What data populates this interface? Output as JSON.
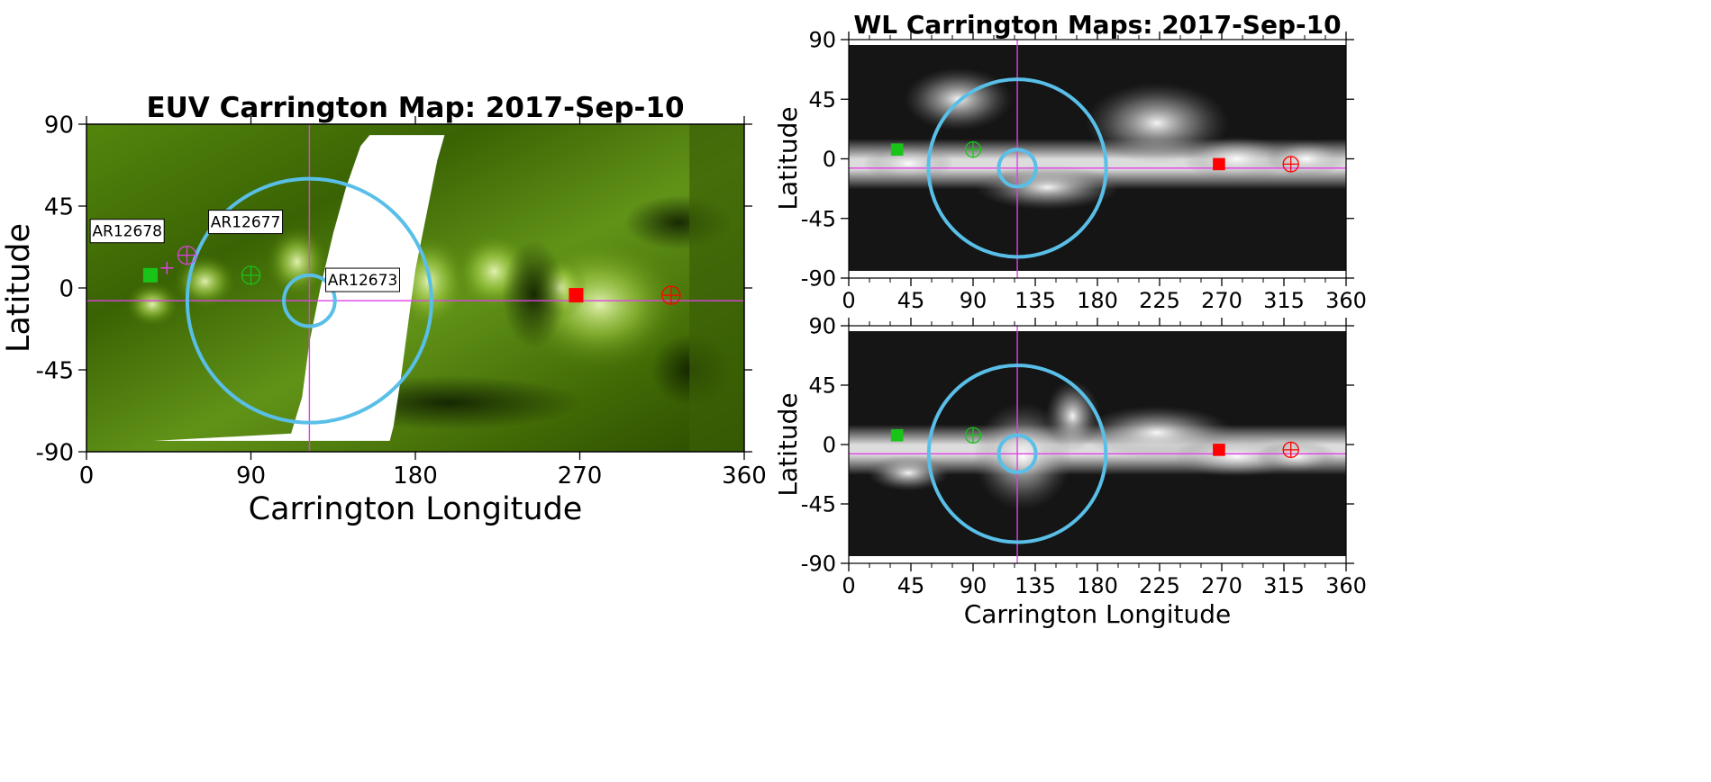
{
  "colors": {
    "circle": "#59bfe8",
    "crosshair": "#e040e6",
    "source_marker": "#19c419",
    "anti_marker": "#ff0000",
    "euv_base": "#2e5200",
    "euv_bright": "#d9f0a0",
    "wl_base": "#151515"
  },
  "chart_data": [
    {
      "id": "euv",
      "type": "heatmap",
      "title": "EUV Carrington Map: 2017-Sep-10",
      "xlabel": "Carrington Longitude",
      "ylabel": "Latitude",
      "xlim": [
        0,
        360
      ],
      "ylim": [
        -90,
        90
      ],
      "xticks": [
        "0",
        "90",
        "180",
        "270",
        "360"
      ],
      "yticks": [
        "90",
        "45",
        "0",
        "-45",
        "-90"
      ],
      "crosshair": {
        "lon": 122,
        "lat": -7
      },
      "circles": [
        {
          "lon": 122,
          "lat": -7,
          "radius_deg": 67
        },
        {
          "lon": 122,
          "lat": -7,
          "radius_deg": 14
        }
      ],
      "markers": [
        {
          "kind": "square",
          "lon": 35,
          "lat": 7,
          "color": "green"
        },
        {
          "kind": "circle-cross",
          "lon": 90,
          "lat": 7,
          "color": "green"
        },
        {
          "kind": "square",
          "lon": 268,
          "lat": -4,
          "color": "red"
        },
        {
          "kind": "circle-cross",
          "lon": 320,
          "lat": -4,
          "color": "red"
        },
        {
          "kind": "plus",
          "lon": 44,
          "lat": 11,
          "color": "magenta"
        },
        {
          "kind": "circle-cross",
          "lon": 55,
          "lat": 18,
          "color": "magenta"
        }
      ],
      "annotations": [
        {
          "text": "AR12678",
          "lon": 43,
          "lat": 13
        },
        {
          "text": "AR12677",
          "lon": 56,
          "lat": 18
        },
        {
          "text": "AR12673",
          "lon": 126,
          "lat": -2
        }
      ]
    },
    {
      "id": "wl-top",
      "type": "heatmap",
      "title": "WL Carrington Maps: 2017-Sep-10",
      "xlabel": "",
      "ylabel": "Latitude",
      "xlim": [
        0,
        360
      ],
      "ylim": [
        -90,
        90
      ],
      "xticks": [
        "0",
        "45",
        "90",
        "135",
        "180",
        "225",
        "270",
        "315",
        "360"
      ],
      "yticks": [
        "90",
        "45",
        "0",
        "-45",
        "-90"
      ],
      "crosshair": {
        "lon": 122,
        "lat": -7
      },
      "circles": [
        {
          "lon": 122,
          "lat": -7,
          "radius_deg": 67
        },
        {
          "lon": 122,
          "lat": -7,
          "radius_deg": 14
        }
      ],
      "markers": [
        {
          "kind": "square",
          "lon": 35,
          "lat": 7,
          "color": "green"
        },
        {
          "kind": "circle-cross",
          "lon": 90,
          "lat": 7,
          "color": "green"
        },
        {
          "kind": "square",
          "lon": 268,
          "lat": -4,
          "color": "red"
        },
        {
          "kind": "circle-cross",
          "lon": 320,
          "lat": -4,
          "color": "red"
        }
      ]
    },
    {
      "id": "wl-bottom",
      "type": "heatmap",
      "title": "",
      "xlabel": "Carrington Longitude",
      "ylabel": "Latitude",
      "xlim": [
        0,
        360
      ],
      "ylim": [
        -90,
        90
      ],
      "xticks": [
        "0",
        "45",
        "90",
        "135",
        "180",
        "225",
        "270",
        "315",
        "360"
      ],
      "yticks": [
        "90",
        "45",
        "0",
        "-45",
        "-90"
      ],
      "crosshair": {
        "lon": 122,
        "lat": -7
      },
      "circles": [
        {
          "lon": 122,
          "lat": -7,
          "radius_deg": 67
        },
        {
          "lon": 122,
          "lat": -7,
          "radius_deg": 14
        }
      ],
      "markers": [
        {
          "kind": "square",
          "lon": 35,
          "lat": 7,
          "color": "green"
        },
        {
          "kind": "circle-cross",
          "lon": 90,
          "lat": 7,
          "color": "green"
        },
        {
          "kind": "square",
          "lon": 268,
          "lat": -4,
          "color": "red"
        },
        {
          "kind": "circle-cross",
          "lon": 320,
          "lat": -4,
          "color": "red"
        }
      ]
    }
  ]
}
